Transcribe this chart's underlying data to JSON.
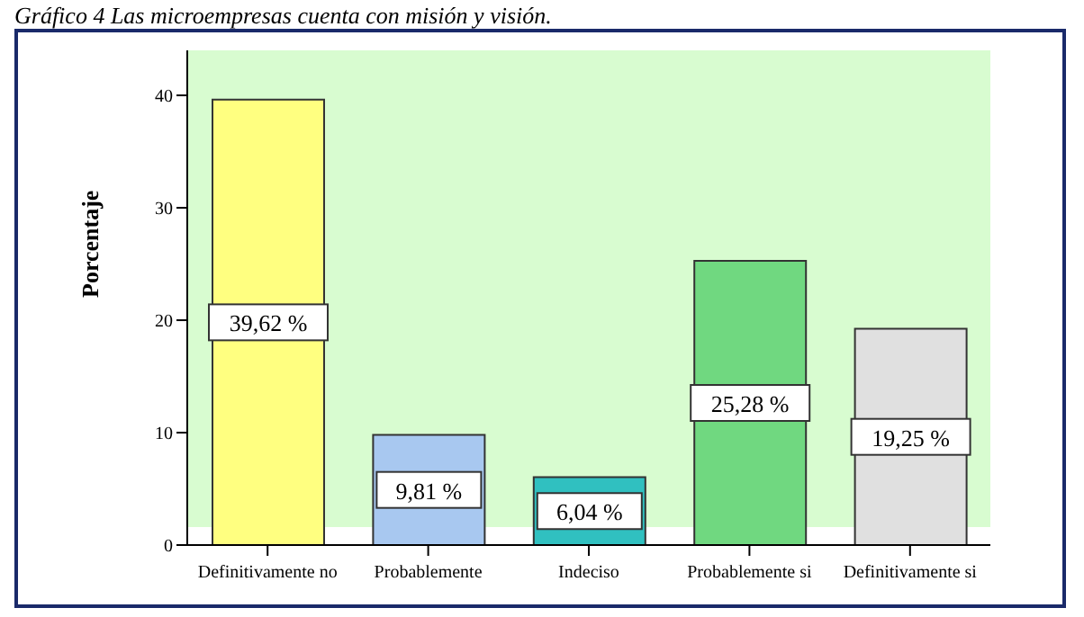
{
  "chart_data": {
    "type": "bar",
    "title": "Gráfico 4 Las microempresas cuenta con misión y visión.",
    "ylabel": "Porcentaje",
    "categories": [
      "Definitivamente no",
      "Probablemente",
      "Indeciso",
      "Probablemente si",
      "Definitivamente si"
    ],
    "values": [
      39.62,
      9.81,
      6.04,
      25.28,
      19.25
    ],
    "colors": [
      "#ffff80",
      "#a8c8f0",
      "#30c0c0",
      "#70d880",
      "#e0e0e0"
    ],
    "value_labels": [
      "39,62 %",
      "9,81 %",
      "6,04 %",
      "25,28 %",
      "19,25 %"
    ],
    "ylim": [
      0,
      44
    ],
    "yticks": [
      0,
      10,
      20,
      30,
      40
    ]
  }
}
